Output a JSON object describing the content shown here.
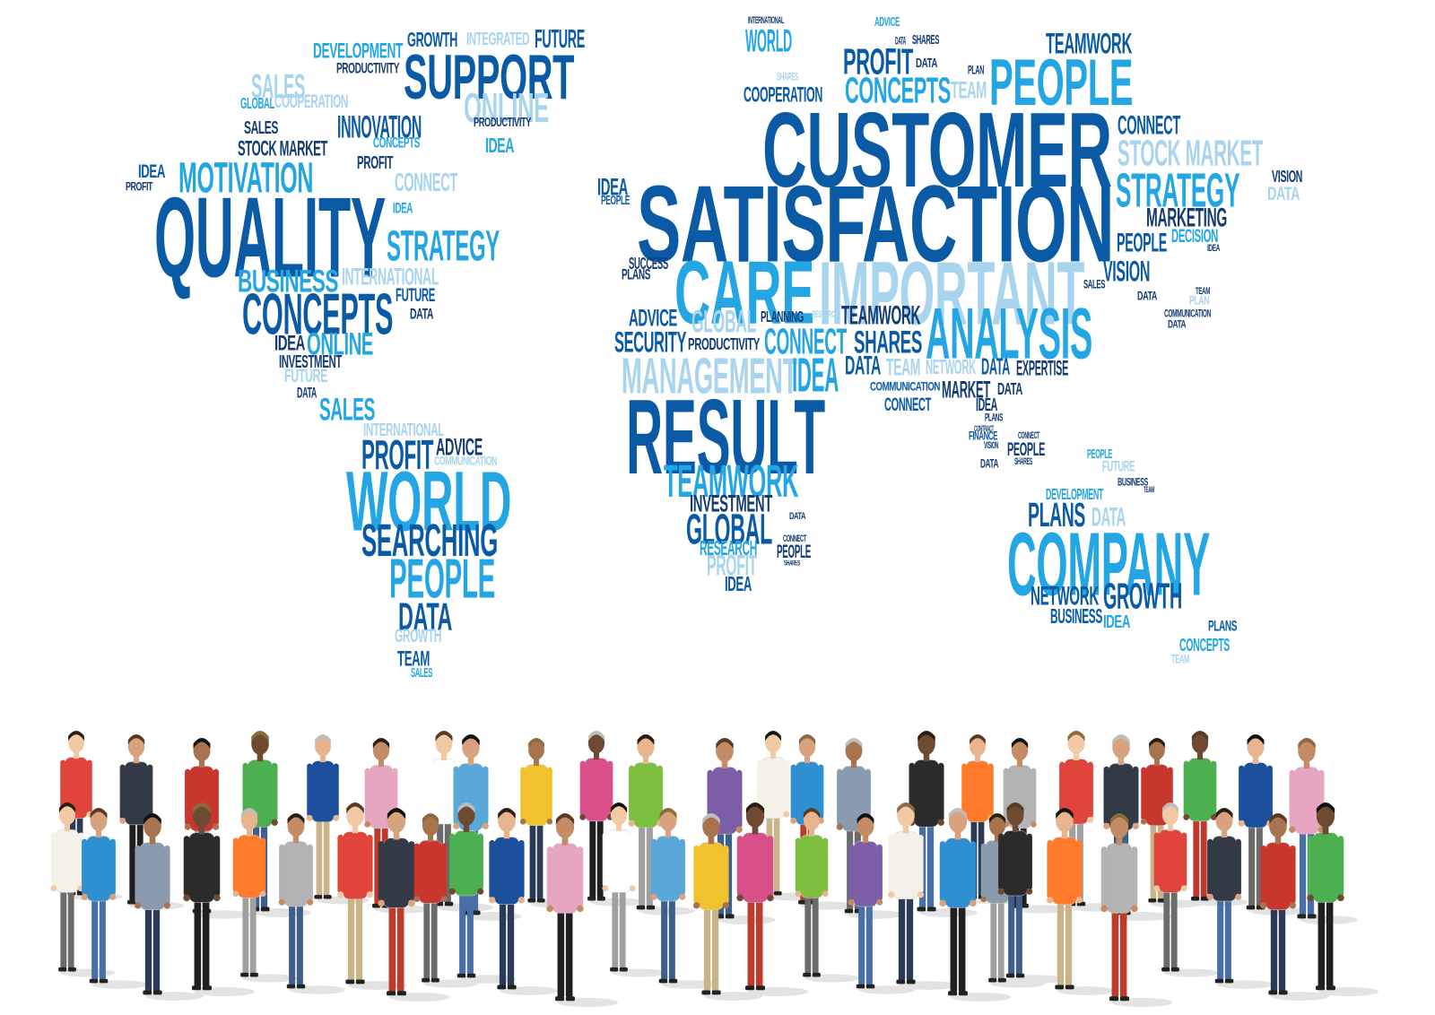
{
  "colors": {
    "background": "#ffffff",
    "blue_dark": "#0b5aa6",
    "blue_mid": "#1b83cf",
    "blue_bright": "#23a6e3",
    "blue_light": "#a9d4ee",
    "navy": "#143c73"
  },
  "word_cloud": {
    "words": [
      {
        "text": "DEVELOPMENT"
      },
      {
        "text": "GROWTH"
      },
      {
        "text": "INTEGRATED"
      },
      {
        "text": "FUTURE"
      },
      {
        "text": "PRODUCTIVITY"
      },
      {
        "text": "SUPPORT"
      },
      {
        "text": "SALES"
      },
      {
        "text": "GLOBAL"
      },
      {
        "text": "COOPERATION"
      },
      {
        "text": "ONLINE"
      },
      {
        "text": "PRODUCTIVITY"
      },
      {
        "text": "SALES"
      },
      {
        "text": "INNOVATION"
      },
      {
        "text": "STOCK MARKET"
      },
      {
        "text": "CONCEPTS"
      },
      {
        "text": "IDEA"
      },
      {
        "text": "PROFIT"
      },
      {
        "text": "IDEA"
      },
      {
        "text": "MOTIVATION"
      },
      {
        "text": "CONNECT"
      },
      {
        "text": "PROFIT"
      },
      {
        "text": "QUALITY"
      },
      {
        "text": "IDEA"
      },
      {
        "text": "STRATEGY"
      },
      {
        "text": "BUSINESS"
      },
      {
        "text": "INTERNATIONAL"
      },
      {
        "text": "CONCEPTS"
      },
      {
        "text": "FUTURE"
      },
      {
        "text": "DATA"
      },
      {
        "text": "IDEA"
      },
      {
        "text": "ONLINE"
      },
      {
        "text": "INVESTMENT"
      },
      {
        "text": "FUTURE"
      },
      {
        "text": "DATA"
      },
      {
        "text": "SALES"
      },
      {
        "text": "INTERNATIONAL"
      },
      {
        "text": "PROFIT"
      },
      {
        "text": "ADVICE"
      },
      {
        "text": "COMMUNICATION"
      },
      {
        "text": "WORLD"
      },
      {
        "text": "SEARCHING"
      },
      {
        "text": "PEOPLE"
      },
      {
        "text": "DATA"
      },
      {
        "text": "GROWTH"
      },
      {
        "text": "TEAM"
      },
      {
        "text": "SALES"
      },
      {
        "text": "INTERNATIONAL"
      },
      {
        "text": "WORLD"
      },
      {
        "text": "ADVICE"
      },
      {
        "text": "DATA"
      },
      {
        "text": "SHARES"
      },
      {
        "text": "TEAMWORK"
      },
      {
        "text": "PROFIT"
      },
      {
        "text": "DATA"
      },
      {
        "text": "PLAN"
      },
      {
        "text": "SHARES"
      },
      {
        "text": "PEOPLE"
      },
      {
        "text": "COOPERATION"
      },
      {
        "text": "CONCEPTS"
      },
      {
        "text": "TEAM"
      },
      {
        "text": "CUSTOMER"
      },
      {
        "text": "CONNECT"
      },
      {
        "text": "STOCK MARKET"
      },
      {
        "text": "IDEA"
      },
      {
        "text": "PEOPLE"
      },
      {
        "text": "SATISFACTION"
      },
      {
        "text": "STRATEGY"
      },
      {
        "text": "VISION"
      },
      {
        "text": "DATA"
      },
      {
        "text": "MARKETING"
      },
      {
        "text": "PEOPLE"
      },
      {
        "text": "DECISION"
      },
      {
        "text": "IDEA"
      },
      {
        "text": "SUCCESS"
      },
      {
        "text": "PLANS"
      },
      {
        "text": "CARE"
      },
      {
        "text": "IMPORTANT"
      },
      {
        "text": "VISION"
      },
      {
        "text": "SALES"
      },
      {
        "text": "DATA"
      },
      {
        "text": "TEAM"
      },
      {
        "text": "PLAN"
      },
      {
        "text": "COMMUNICATION"
      },
      {
        "text": "DATA"
      },
      {
        "text": "ADVICE"
      },
      {
        "text": "GLOBAL"
      },
      {
        "text": "PLANNING"
      },
      {
        "text": "RESEARCH"
      },
      {
        "text": "TEAMWORK"
      },
      {
        "text": "ANALYSIS"
      },
      {
        "text": "SECURITY"
      },
      {
        "text": "PRODUCTIVITY"
      },
      {
        "text": "CONNECT"
      },
      {
        "text": "SHARES"
      },
      {
        "text": "MANAGEMENT"
      },
      {
        "text": "IDEA"
      },
      {
        "text": "DATA"
      },
      {
        "text": "TEAM"
      },
      {
        "text": "NETWORK"
      },
      {
        "text": "DATA"
      },
      {
        "text": "EXPERTISE"
      },
      {
        "text": "COMMUNICATION"
      },
      {
        "text": "MARKET"
      },
      {
        "text": "DATA"
      },
      {
        "text": "RESULT"
      },
      {
        "text": "CONNECT"
      },
      {
        "text": "IDEA"
      },
      {
        "text": "PLANS"
      },
      {
        "text": "CONTRACT"
      },
      {
        "text": "FINANCE"
      },
      {
        "text": "CONNECT"
      },
      {
        "text": "VISION"
      },
      {
        "text": "PEOPLE"
      },
      {
        "text": "DATA"
      },
      {
        "text": "SHARES"
      },
      {
        "text": "PEOPLE"
      },
      {
        "text": "FUTURE"
      },
      {
        "text": "TEAMWORK"
      },
      {
        "text": "BUSINESS"
      },
      {
        "text": "TEAM"
      },
      {
        "text": "INVESTMENT"
      },
      {
        "text": "DEVELOPMENT"
      },
      {
        "text": "GLOBAL"
      },
      {
        "text": "PLANS"
      },
      {
        "text": "DATA"
      },
      {
        "text": "DATA"
      },
      {
        "text": "RESEARCH"
      },
      {
        "text": "COMPANY"
      },
      {
        "text": "CONNECT"
      },
      {
        "text": "PROFIT"
      },
      {
        "text": "PEOPLE"
      },
      {
        "text": "SHARES"
      },
      {
        "text": "IDEA"
      },
      {
        "text": "NETWORK"
      },
      {
        "text": "GROWTH"
      },
      {
        "text": "BUSINESS"
      },
      {
        "text": "IDEA"
      },
      {
        "text": "PLANS"
      },
      {
        "text": "CONCEPTS"
      },
      {
        "text": "TEAM"
      }
    ]
  },
  "crowd": {
    "description_icon": "diverse-people-group-photo"
  }
}
